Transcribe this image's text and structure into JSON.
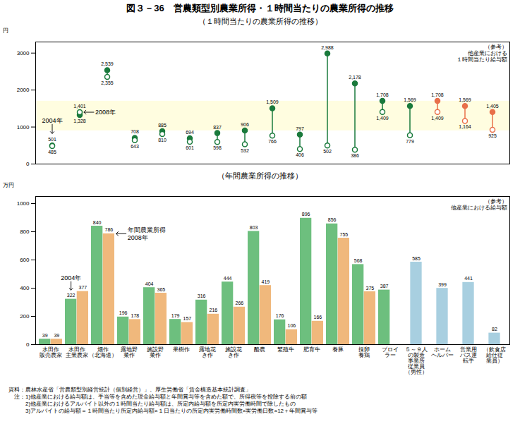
{
  "chart_data": [
    {
      "type": "dumbbell",
      "title": "図３－36　営農類型別農業所得・１時間当たりの農業所得の推移",
      "subtitle": "（１時間当たりの農業所得の推移）",
      "ylabel": "円",
      "categories": [
        null,
        null,
        null,
        null,
        null,
        null,
        null,
        null,
        null,
        null,
        null,
        null,
        null,
        null,
        null,
        null,
        null
      ],
      "series": [
        {
          "marker": "filled_circle",
          "values": [
            501,
            1328,
            2539,
            708,
            885,
            694,
            837,
            906,
            1509,
            797,
            2988,
            2178,
            1708,
            1569,
            1708,
            1569,
            1405
          ],
          "value_labels": [
            "501",
            "1,328",
            "2,539",
            "708",
            "885",
            "694",
            "837",
            "906",
            "1,509",
            "797",
            "2,988",
            "2,178",
            "1,708",
            "1,569",
            "1,708",
            "1,569",
            "1,405"
          ],
          "colors": [
            "#1a7a3c",
            "#1a7a3c",
            "#1a7a3c",
            "#1a7a3c",
            "#1a7a3c",
            "#1a7a3c",
            "#1a7a3c",
            "#1a7a3c",
            "#1a7a3c",
            "#1a7a3c",
            "#1a7a3c",
            "#1a7a3c",
            "#1a7a3c",
            "#1a7a3c",
            "#e8704a",
            "#e8704a",
            "#e8704a"
          ]
        },
        {
          "marker": "open_circle",
          "values": [
            485,
            1401,
            2355,
            643,
            810,
            601,
            598,
            532,
            766,
            406,
            502,
            386,
            1409,
            779,
            1409,
            1164,
            925
          ],
          "value_labels": [
            "485",
            "1,401",
            "2,355",
            "643",
            "810",
            "601",
            "598",
            "532",
            "766",
            "406",
            "502",
            "386",
            "1,409",
            "779",
            "1,409",
            "1,164",
            "925"
          ],
          "colors": [
            "#1a7a3c",
            "#1a7a3c",
            "#1a7a3c",
            "#1a7a3c",
            "#1a7a3c",
            "#1a7a3c",
            "#1a7a3c",
            "#1a7a3c",
            "#1a7a3c",
            "#1a7a3c",
            "#1a7a3c",
            "#1a7a3c",
            "#1a7a3c",
            "#1a7a3c",
            "#e8704a",
            "#e8704a",
            "#e8704a"
          ]
        }
      ],
      "band": {
        "from": 900,
        "to": 1700,
        "color": "#fffde0"
      },
      "annotations": [
        {
          "text": "2004年",
          "series": 0,
          "index": 0
        },
        {
          "text": "2008年",
          "series": 1,
          "index": 1
        },
        {
          "text": "（参考）\n他産業における\n１時間当たり給与額"
        }
      ],
      "ylim": [
        0,
        3300
      ],
      "yticks": [
        0,
        1000,
        2000,
        3000
      ],
      "data_labels": true,
      "tick_labels": "y",
      "grid": false
    },
    {
      "type": "bar",
      "subtitle": "（年間農業所得の推移）",
      "ylabel": "万円",
      "categories": [
        "水田作\n販売農家",
        "水田作\n主業農家",
        "畑作\n（北海道）",
        "露地野\n菜作",
        "施設野\n菜作",
        "果樹作",
        "露地花\nき作",
        "施設花\nき作",
        "酪農",
        "繁殖牛",
        "肥育牛",
        "養豚",
        "採卵\n養鶏",
        "ブロイ\nラー",
        "５～９人\nの製造\n事業所\n従業員\n（男性）",
        "ホーム\nヘルパー",
        "営業用\nバス運\n転手",
        "（飲食店\n給仕従\n業員）"
      ],
      "series": [
        {
          "color": "#6dbf7e",
          "values": [
            39,
            322,
            840,
            196,
            404,
            179,
            316,
            444,
            803,
            176,
            896,
            856,
            568,
            387,
            null,
            null,
            null,
            null
          ]
        },
        {
          "color": "#f0b87c",
          "values": [
            39,
            377,
            786,
            178,
            365,
            157,
            216,
            266,
            419,
            106,
            166,
            755,
            375,
            null,
            null,
            null,
            null,
            null
          ]
        },
        {
          "color": "#a8cfe0",
          "values": [
            null,
            null,
            null,
            null,
            null,
            null,
            null,
            null,
            null,
            null,
            null,
            null,
            null,
            null,
            585,
            399,
            441,
            82
          ]
        }
      ],
      "annotations": [
        {
          "text": "2004年",
          "series": 0,
          "index": 1
        },
        {
          "text": "年間農業所得\n2008年",
          "series": 1,
          "index": 2
        },
        {
          "text": "（参考）\n他産業における給与額"
        }
      ],
      "ylim": [
        0,
        1050
      ],
      "yticks": [
        0,
        200,
        400,
        600,
        800,
        1000
      ],
      "data_labels": true,
      "grid": false,
      "note": "資料：農林水産省「営農類型別経営統計（個別経営）」、厚生労働省「賃金構造基本統計調査」\n　注：1)他産業における給与額は、手当等を含めた現金給与額と年間賞与等を含めた額で、所得税等を控除する前の額\n　　　2)他産業におけるアルバイト以外の１時間当たり給与額は、所定内給与額を所定内実労働時間で除したもの\n　　　3)アルバイトの給与額＝１時間当たり所定内給与額×１日当たりの所定内実労働時間数×実労働日数×12＋年間賞与等"
    }
  ]
}
